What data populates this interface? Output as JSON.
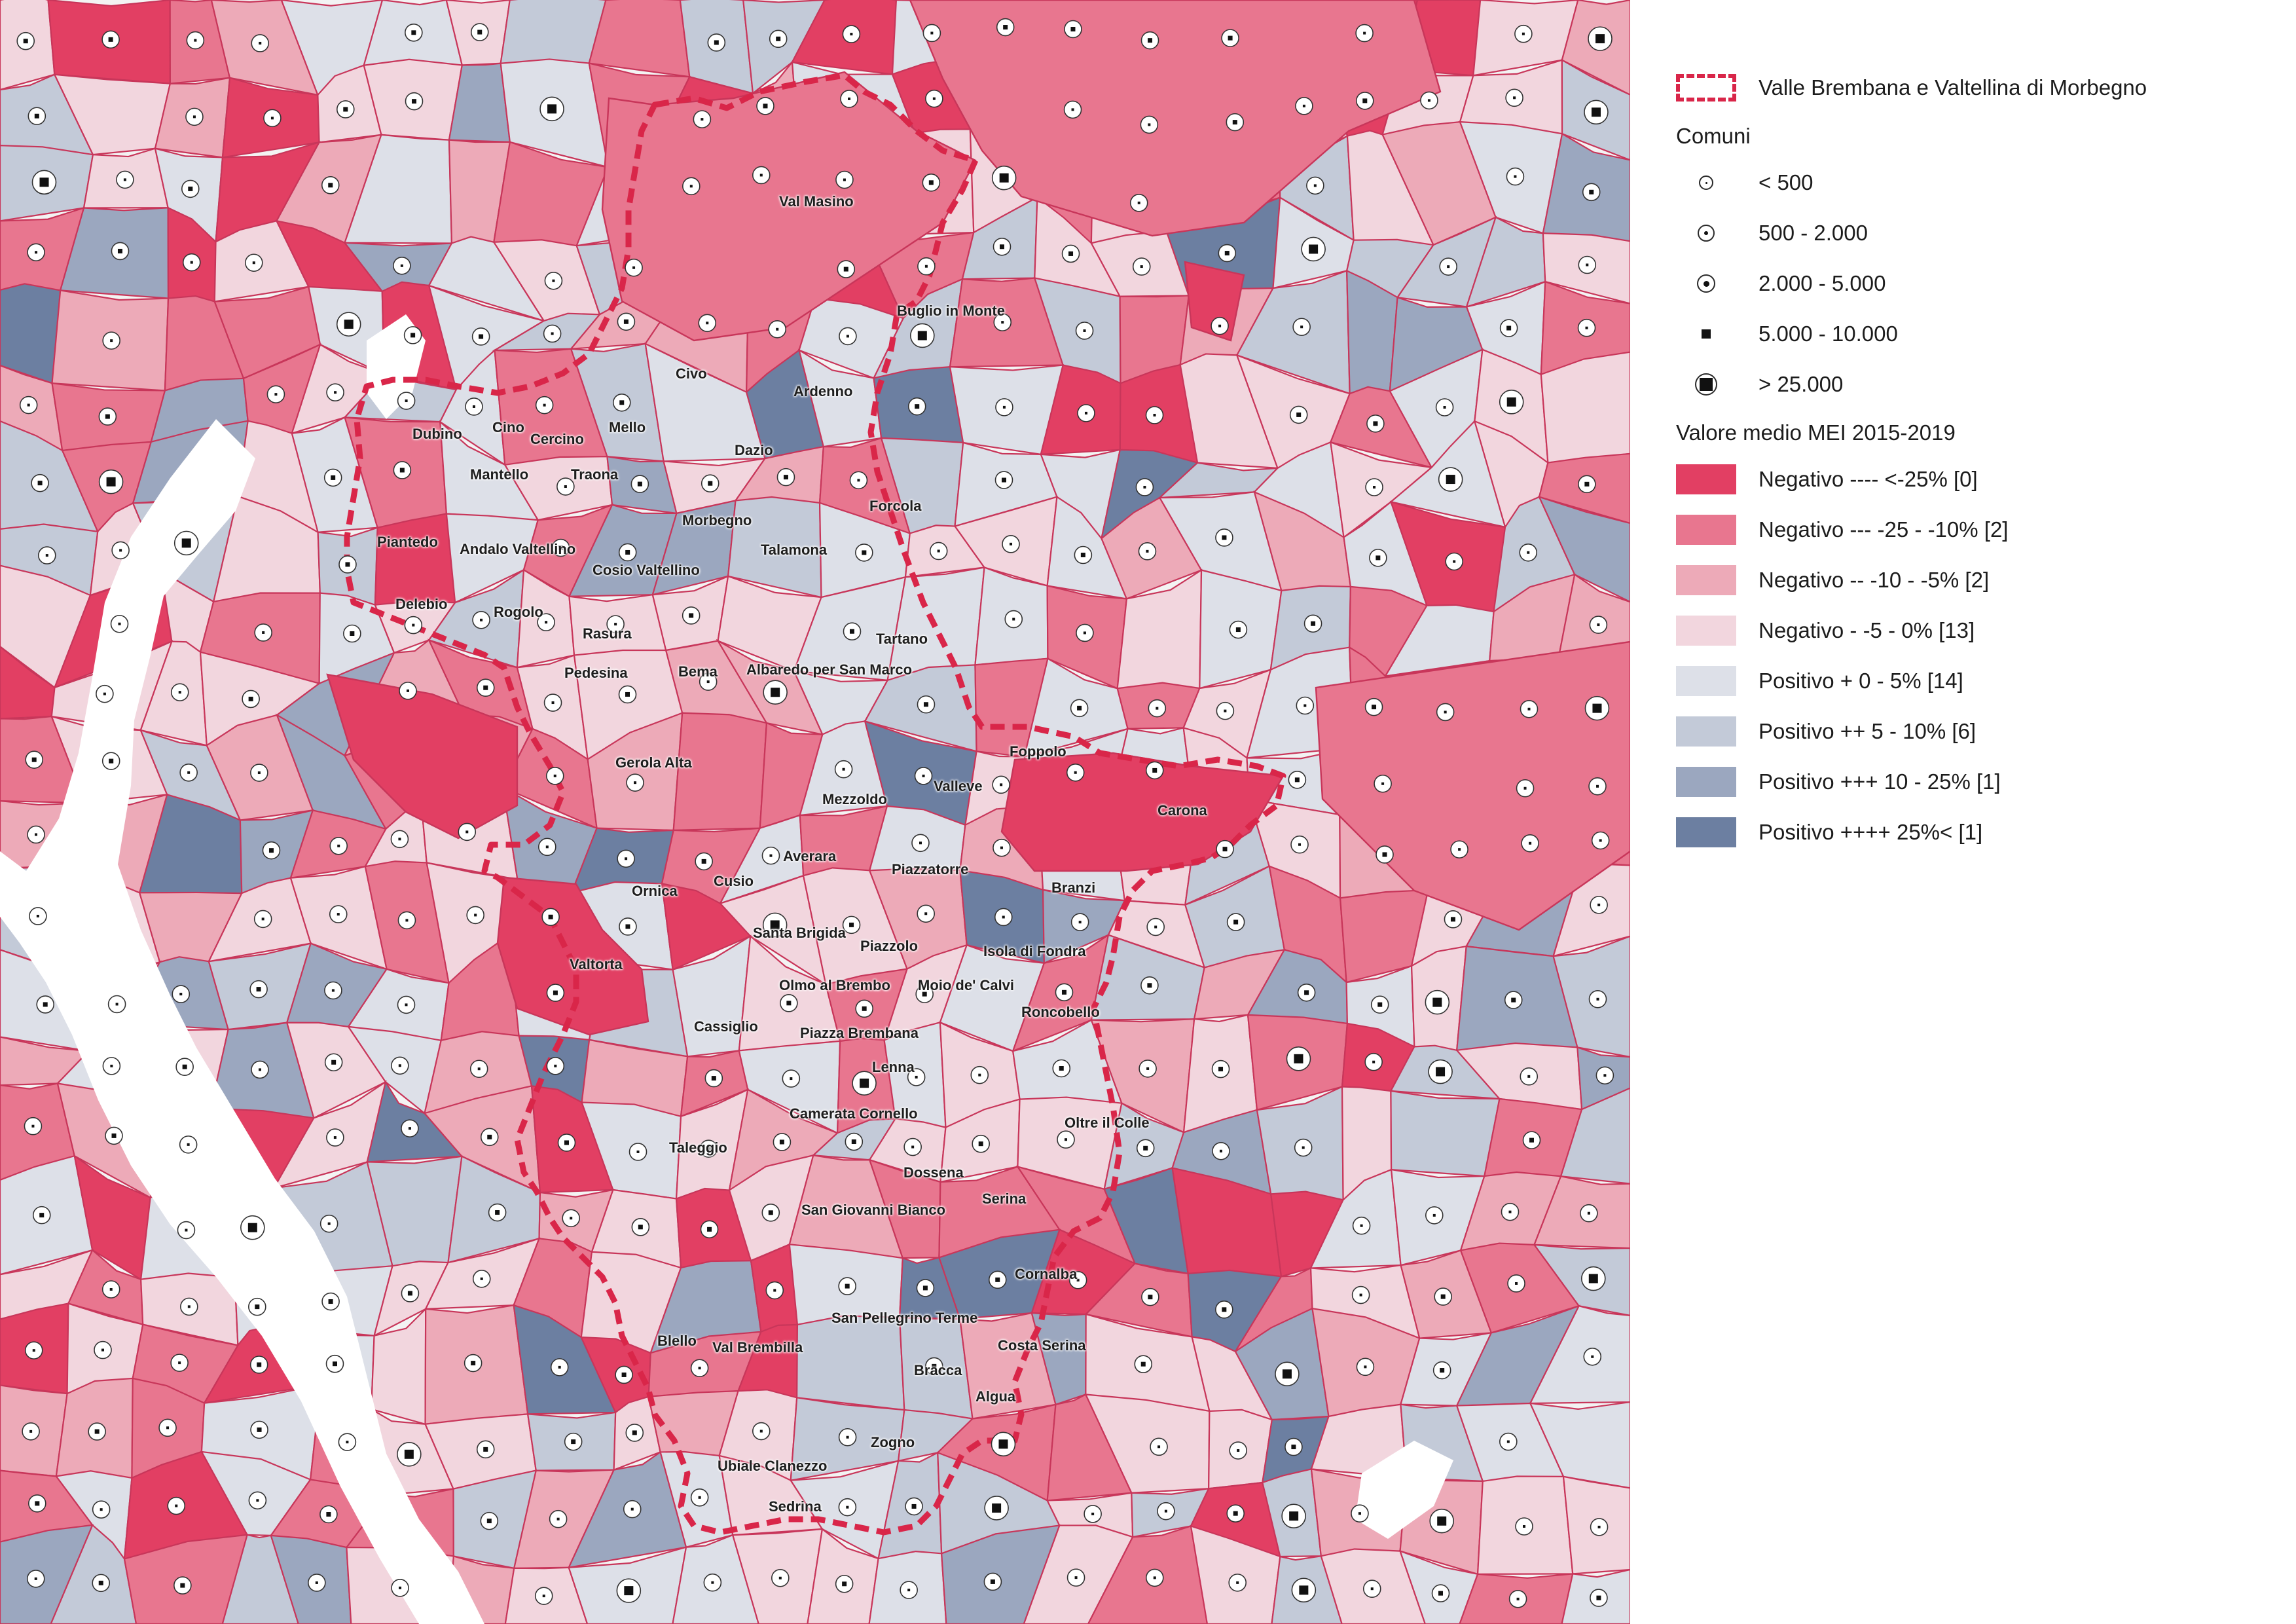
{
  "legend": {
    "boundary_label": "Valle Brembana e Valtellina di Morbegno",
    "comuni_title": "Comuni",
    "population_classes": [
      {
        "label": "< 500",
        "icon": "population-dot-icon"
      },
      {
        "label": "500 - 2.000",
        "icon": "population-dot-icon"
      },
      {
        "label": "2.000 - 5.000",
        "icon": "population-dot-icon"
      },
      {
        "label": "5.000 - 10.000",
        "icon": "population-square-icon"
      },
      {
        "label": "> 25.000",
        "icon": "population-square-icon"
      }
    ],
    "mei_title": "Valore medio MEI 2015-2019",
    "mei_classes": [
      {
        "label": "Negativo ---- <-25% [0]",
        "color": "#e23f63"
      },
      {
        "label": "Negativo --- -25 - -10% [2]",
        "color": "#e8768f"
      },
      {
        "label": "Negativo -- -10 - -5% [2]",
        "color": "#edaab8"
      },
      {
        "label": "Negativo -  -5 - 0% [13]",
        "color": "#f2d6de"
      },
      {
        "label": "Positivo + 0 - 5% [14]",
        "color": "#dde0e8"
      },
      {
        "label": "Positivo ++ 5 - 10% [6]",
        "color": "#c3cad8"
      },
      {
        "label": "Positivo +++ 10 - 25% [1]",
        "color": "#9ba7bf"
      },
      {
        "label": "Positivo ++++ 25%< [1]",
        "color": "#6c7fa1"
      }
    ]
  },
  "map": {
    "boundary_color": "#d92649",
    "lake_color": "#ffffff",
    "place_labels": [
      {
        "name": "Val Masino",
        "class": "dot"
      },
      {
        "name": "Buglio in Monte",
        "class": "dot"
      },
      {
        "name": "Civo",
        "class": "dot"
      },
      {
        "name": "Ardenno",
        "class": "dot"
      },
      {
        "name": "Dazio",
        "class": "dot"
      },
      {
        "name": "Mello",
        "class": "dot"
      },
      {
        "name": "Dubino",
        "class": "dot"
      },
      {
        "name": "Cino",
        "class": "dot"
      },
      {
        "name": "Cercino",
        "class": "dot"
      },
      {
        "name": "Mantello",
        "class": "dot"
      },
      {
        "name": "Traona",
        "class": "dot"
      },
      {
        "name": "Forcola",
        "class": "dot"
      },
      {
        "name": "Morbegno",
        "class": "square"
      },
      {
        "name": "Piantedo",
        "class": "dot"
      },
      {
        "name": "Andalo Valtellino",
        "class": "dot"
      },
      {
        "name": "Talamona",
        "class": "dot"
      },
      {
        "name": "Cosio Valtellino",
        "class": "dot"
      },
      {
        "name": "Delebio",
        "class": "dot"
      },
      {
        "name": "Rogolo",
        "class": "dot"
      },
      {
        "name": "Rasura",
        "class": "dot"
      },
      {
        "name": "Tartano",
        "class": "dot"
      },
      {
        "name": "Pedesina",
        "class": "dot"
      },
      {
        "name": "Bema",
        "class": "dot"
      },
      {
        "name": "Albaredo per San Marco",
        "class": "dot"
      },
      {
        "name": "Gerola Alta",
        "class": "dot"
      },
      {
        "name": "Foppolo",
        "class": "dot"
      },
      {
        "name": "Valleve",
        "class": "dot"
      },
      {
        "name": "Mezzoldo",
        "class": "dot"
      },
      {
        "name": "Carona",
        "class": "dot"
      },
      {
        "name": "Averara",
        "class": "dot"
      },
      {
        "name": "Piazzatorre",
        "class": "dot"
      },
      {
        "name": "Ornica",
        "class": "dot"
      },
      {
        "name": "Cusio",
        "class": "dot"
      },
      {
        "name": "Branzi",
        "class": "dot"
      },
      {
        "name": "Santa Brigida",
        "class": "dot"
      },
      {
        "name": "Piazzolo",
        "class": "dot"
      },
      {
        "name": "Isola di Fondra",
        "class": "dot"
      },
      {
        "name": "Valtorta",
        "class": "dot"
      },
      {
        "name": "Olmo al Brembo",
        "class": "dot"
      },
      {
        "name": "Moio de' Calvi",
        "class": "dot"
      },
      {
        "name": "Roncobello",
        "class": "dot"
      },
      {
        "name": "Cassiglio",
        "class": "dot"
      },
      {
        "name": "Piazza Brembana",
        "class": "dot"
      },
      {
        "name": "Lenna",
        "class": "dot"
      },
      {
        "name": "Camerata Cornello",
        "class": "dot"
      },
      {
        "name": "Oltre il Colle",
        "class": "dot"
      },
      {
        "name": "Taleggio",
        "class": "dot"
      },
      {
        "name": "Dossena",
        "class": "dot"
      },
      {
        "name": "Serina",
        "class": "dot"
      },
      {
        "name": "San Giovanni Bianco",
        "class": "dot"
      },
      {
        "name": "Cornalba",
        "class": "dot"
      },
      {
        "name": "San Pellegrino Terme",
        "class": "dot"
      },
      {
        "name": "Blello",
        "class": "dot"
      },
      {
        "name": "Val Brembilla",
        "class": "dot"
      },
      {
        "name": "Costa Serina",
        "class": "dot"
      },
      {
        "name": "Bracca",
        "class": "dot"
      },
      {
        "name": "Algua",
        "class": "dot"
      },
      {
        "name": "Zogno",
        "class": "dot"
      },
      {
        "name": "Ubiale Clanezzo",
        "class": "dot"
      },
      {
        "name": "Sedrina",
        "class": "dot"
      }
    ]
  }
}
